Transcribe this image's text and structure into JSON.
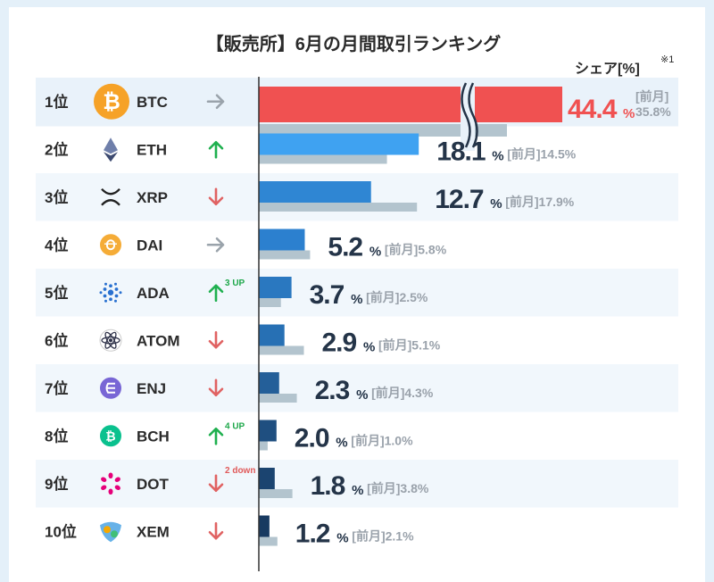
{
  "colors": {
    "background": "#e4f0f9",
    "row_alt": "#f1f7fc",
    "highlight_bar": "#f05151",
    "prev_bar": "#b3c4ce",
    "axis": "#333333",
    "arrow_up": "#1fb04f",
    "arrow_down": "#e06262",
    "arrow_flat": "#9aa3ab",
    "blue_gradient": [
      "#45aaf8",
      "#3fa2f1",
      "#2f86d3",
      "#2c80cf",
      "#2a78c0",
      "#2770b4",
      "#245f99",
      "#1f4f80",
      "#1b4470",
      "#183a61"
    ]
  },
  "chart_data": {
    "type": "bar",
    "title": "【販売所】6月の月間取引ランキング",
    "share_label": "シェア[%]",
    "footnote_mark": "※1",
    "prev_label": "[前月]",
    "unit": "%",
    "rank_suffix": "位",
    "xlim": [
      0,
      18.5
    ],
    "axis_break_on_first": true,
    "series": [
      {
        "name": "6月",
        "values": [
          44.4,
          18.1,
          12.7,
          5.2,
          3.7,
          2.9,
          2.3,
          2.0,
          1.8,
          1.2
        ]
      },
      {
        "name": "前月",
        "values": [
          35.8,
          14.5,
          17.9,
          5.8,
          2.5,
          5.1,
          4.3,
          1.0,
          3.8,
          2.1
        ]
      }
    ],
    "rows": [
      {
        "rank": "1",
        "symbol": "BTC",
        "icon": "bitcoin-icon",
        "value": 44.4,
        "value_text": "44.4",
        "prev": 35.8,
        "prev_text": "35.8",
        "trend": "flat",
        "move": ""
      },
      {
        "rank": "2",
        "symbol": "ETH",
        "icon": "ethereum-icon",
        "value": 18.1,
        "value_text": "18.1",
        "prev": 14.5,
        "prev_text": "14.5",
        "trend": "up",
        "move": ""
      },
      {
        "rank": "3",
        "symbol": "XRP",
        "icon": "xrp-icon",
        "value": 12.7,
        "value_text": "12.7",
        "prev": 17.9,
        "prev_text": "17.9",
        "trend": "down",
        "move": ""
      },
      {
        "rank": "4",
        "symbol": "DAI",
        "icon": "dai-icon",
        "value": 5.2,
        "value_text": "5.2",
        "prev": 5.8,
        "prev_text": "5.8",
        "trend": "flat",
        "move": ""
      },
      {
        "rank": "5",
        "symbol": "ADA",
        "icon": "cardano-icon",
        "value": 3.7,
        "value_text": "3.7",
        "prev": 2.5,
        "prev_text": "2.5",
        "trend": "up",
        "move": "3 UP"
      },
      {
        "rank": "6",
        "symbol": "ATOM",
        "icon": "cosmos-icon",
        "value": 2.9,
        "value_text": "2.9",
        "prev": 5.1,
        "prev_text": "5.1",
        "trend": "down",
        "move": ""
      },
      {
        "rank": "7",
        "symbol": "ENJ",
        "icon": "enjin-icon",
        "value": 2.3,
        "value_text": "2.3",
        "prev": 4.3,
        "prev_text": "4.3",
        "trend": "down",
        "move": ""
      },
      {
        "rank": "8",
        "symbol": "BCH",
        "icon": "bitcoin-cash-icon",
        "value": 2.0,
        "value_text": "2.0",
        "prev": 1.0,
        "prev_text": "1.0",
        "trend": "up",
        "move": "4 UP"
      },
      {
        "rank": "9",
        "symbol": "DOT",
        "icon": "polkadot-icon",
        "value": 1.8,
        "value_text": "1.8",
        "prev": 3.8,
        "prev_text": "3.8",
        "trend": "down",
        "move": "2 down"
      },
      {
        "rank": "10",
        "symbol": "XEM",
        "icon": "nem-icon",
        "value": 1.2,
        "value_text": "1.2",
        "prev": 2.1,
        "prev_text": "2.1",
        "trend": "down",
        "move": ""
      }
    ]
  }
}
